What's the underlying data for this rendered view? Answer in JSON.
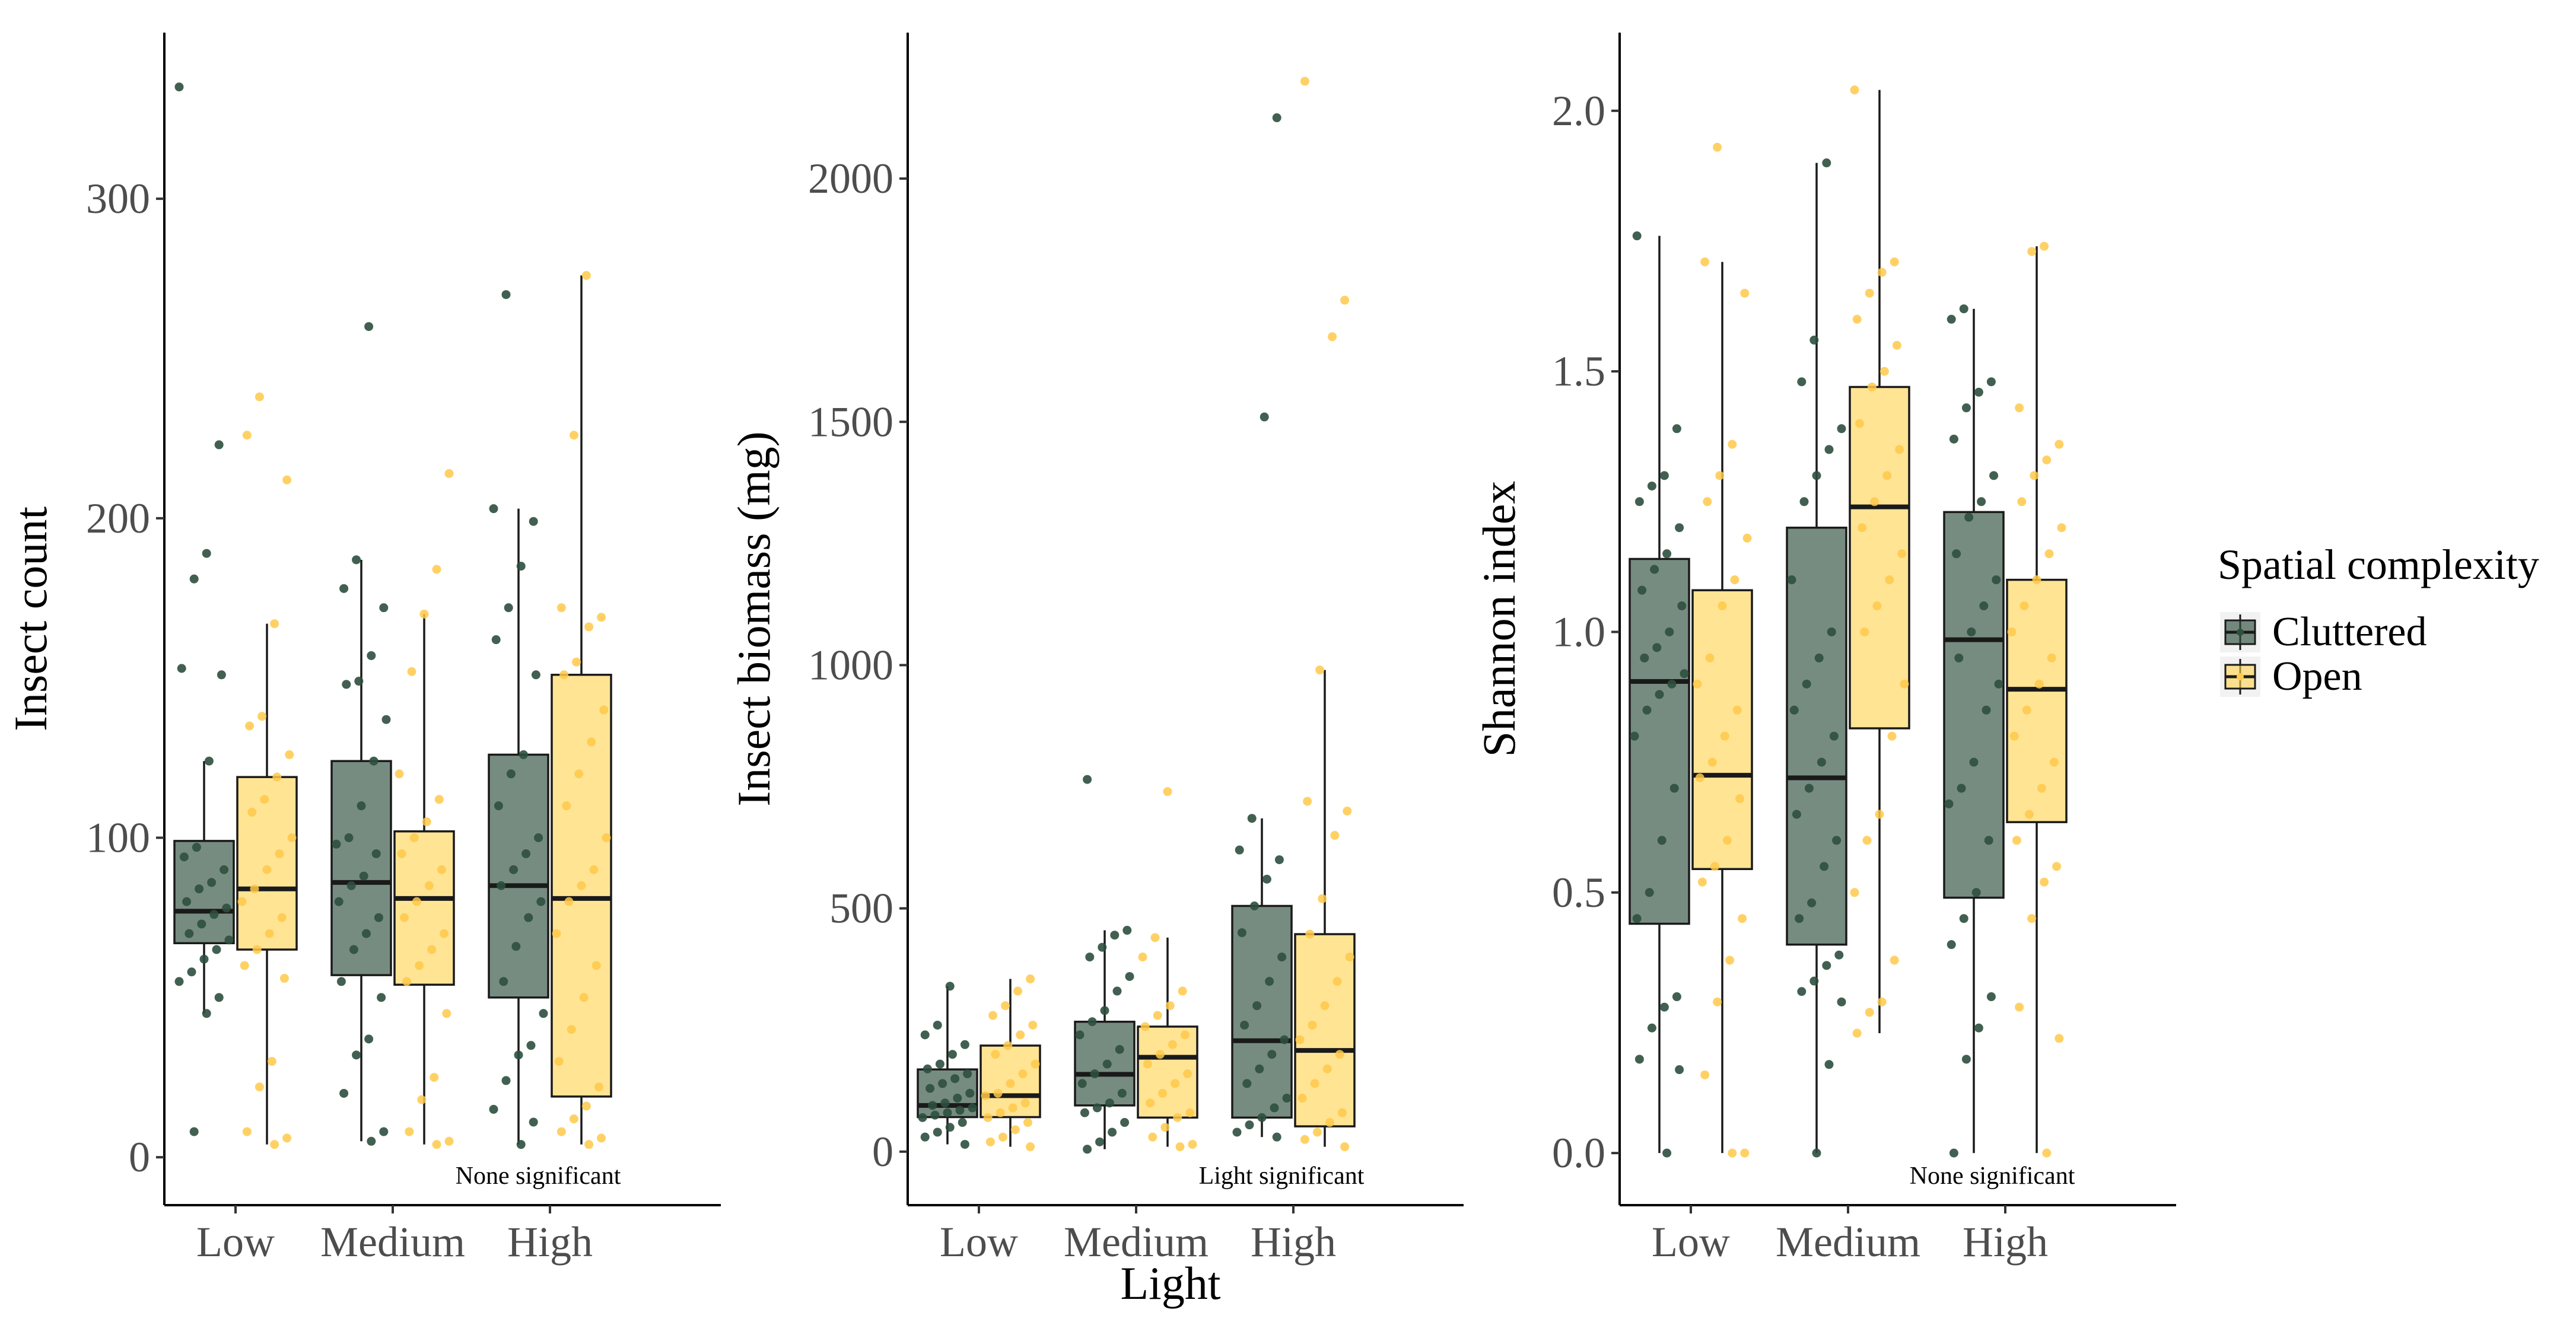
{
  "figure": {
    "shared_xlabel": "Light",
    "legend": {
      "title": "Spatial complexity",
      "entries": [
        {
          "label": "Cluttered",
          "fill": "#2e4f3e",
          "point": "#2e4f3e"
        },
        {
          "label": "Open",
          "fill": "#ffd24d",
          "point": "#ffc94a"
        }
      ]
    }
  },
  "chart_data": [
    {
      "type": "boxplot",
      "ylabel": "Insect count",
      "xlabel": "",
      "ylim": [
        -15,
        352
      ],
      "yticks": [
        0,
        100,
        200,
        300
      ],
      "ytick_labels": [
        "0",
        "100",
        "200",
        "300"
      ],
      "categories": [
        "Low",
        "Medium",
        "High"
      ],
      "annotation": "None significant",
      "series": [
        {
          "name": "Cluttered",
          "boxes": [
            {
              "q1": 67,
              "median": 77,
              "q3": 99,
              "whisker_low": 45,
              "whisker_high": 124,
              "points": [
                335,
                223,
                189,
                181,
                153,
                151,
                124,
                97,
                94,
                90,
                86,
                84,
                80,
                78,
                76,
                73,
                70,
                68,
                65,
                62,
                58,
                55,
                50,
                45,
                8
              ]
            },
            {
              "q1": 57,
              "median": 86,
              "q3": 124,
              "whisker_low": 5,
              "whisker_high": 187,
              "points": [
                260,
                187,
                178,
                172,
                157,
                149,
                148,
                137,
                124,
                110,
                100,
                98,
                95,
                88,
                85,
                80,
                75,
                70,
                65,
                55,
                50,
                37,
                32,
                20,
                8,
                5
              ]
            },
            {
              "q1": 50,
              "median": 85,
              "q3": 126,
              "whisker_low": 4,
              "whisker_high": 203,
              "points": [
                270,
                203,
                199,
                185,
                172,
                162,
                151,
                126,
                120,
                110,
                100,
                95,
                90,
                85,
                80,
                75,
                66,
                55,
                45,
                35,
                32,
                24,
                15,
                11,
                4
              ]
            }
          ]
        },
        {
          "name": "Open",
          "boxes": [
            {
              "q1": 65,
              "median": 84,
              "q3": 119,
              "whisker_low": 4,
              "whisker_high": 167,
              "points": [
                238,
                226,
                212,
                167,
                138,
                135,
                126,
                119,
                112,
                108,
                100,
                95,
                90,
                84,
                80,
                75,
                70,
                65,
                60,
                56,
                30,
                22,
                8,
                6,
                4
              ]
            },
            {
              "q1": 54,
              "median": 81,
              "q3": 102,
              "whisker_low": 4,
              "whisker_high": 170,
              "points": [
                214,
                184,
                170,
                152,
                120,
                112,
                105,
                100,
                95,
                90,
                85,
                80,
                75,
                70,
                65,
                60,
                55,
                45,
                25,
                18,
                8,
                5,
                4
              ]
            },
            {
              "q1": 19,
              "median": 81,
              "q3": 151,
              "whisker_low": 4,
              "whisker_high": 276,
              "points": [
                276,
                226,
                172,
                169,
                166,
                155,
                151,
                140,
                130,
                120,
                110,
                100,
                90,
                85,
                80,
                70,
                60,
                50,
                40,
                30,
                22,
                16,
                12,
                8,
                6,
                4
              ]
            }
          ]
        }
      ]
    },
    {
      "type": "boxplot",
      "ylabel": "Insect biomass (mg)",
      "xlabel": "Light",
      "ylim": [
        -110,
        2300
      ],
      "yticks": [
        0,
        500,
        1000,
        1500,
        2000
      ],
      "ytick_labels": [
        "0",
        "500",
        "1000",
        "1500",
        "2000"
      ],
      "categories": [
        "Low",
        "Medium",
        "High"
      ],
      "annotation": "Light significant",
      "series": [
        {
          "name": "Cluttered",
          "boxes": [
            {
              "q1": 71,
              "median": 95,
              "q3": 169,
              "whisker_low": 15,
              "whisker_high": 340,
              "points": [
                340,
                260,
                240,
                220,
                200,
                180,
                170,
                160,
                150,
                140,
                130,
                120,
                110,
                100,
                95,
                90,
                85,
                80,
                75,
                70,
                60,
                50,
                40,
                30,
                15
              ]
            },
            {
              "q1": 95,
              "median": 159,
              "q3": 267,
              "whisker_low": 5,
              "whisker_high": 455,
              "points": [
                765,
                455,
                445,
                420,
                400,
                360,
                330,
                290,
                267,
                240,
                210,
                180,
                160,
                140,
                120,
                100,
                90,
                80,
                60,
                40,
                20,
                5
              ]
            },
            {
              "q1": 70,
              "median": 228,
              "q3": 505,
              "whisker_low": 30,
              "whisker_high": 685,
              "points": [
                2125,
                1510,
                685,
                620,
                600,
                560,
                505,
                450,
                400,
                350,
                300,
                260,
                230,
                200,
                170,
                140,
                110,
                90,
                70,
                55,
                40,
                30
              ]
            }
          ]
        },
        {
          "name": "Open",
          "boxes": [
            {
              "q1": 71,
              "median": 115,
              "q3": 218,
              "whisker_low": 10,
              "whisker_high": 355,
              "points": [
                355,
                330,
                300,
                280,
                260,
                240,
                218,
                200,
                180,
                160,
                140,
                120,
                115,
                100,
                90,
                80,
                70,
                60,
                45,
                30,
                20,
                10
              ]
            },
            {
              "q1": 70,
              "median": 194,
              "q3": 257,
              "whisker_low": 10,
              "whisker_high": 440,
              "points": [
                740,
                440,
                400,
                330,
                300,
                280,
                257,
                240,
                220,
                200,
                180,
                160,
                140,
                120,
                100,
                80,
                70,
                50,
                30,
                15,
                10
              ]
            },
            {
              "q1": 52,
              "median": 208,
              "q3": 447,
              "whisker_low": 10,
              "whisker_high": 990,
              "points": [
                2200,
                1750,
                1675,
                990,
                720,
                700,
                650,
                520,
                447,
                400,
                350,
                300,
                260,
                230,
                200,
                170,
                140,
                110,
                80,
                60,
                40,
                25,
                10
              ]
            }
          ]
        }
      ]
    },
    {
      "type": "boxplot",
      "ylabel": "Shannon index",
      "xlabel": "",
      "ylim": [
        -0.1,
        2.15
      ],
      "yticks": [
        0.0,
        0.5,
        1.0,
        1.5,
        2.0
      ],
      "ytick_labels": [
        "0.0",
        "0.5",
        "1.0",
        "1.5",
        "2.0"
      ],
      "categories": [
        "Low",
        "Medium",
        "High"
      ],
      "annotation": "None significant",
      "series": [
        {
          "name": "Cluttered",
          "boxes": [
            {
              "q1": 0.44,
              "median": 0.905,
              "q3": 1.14,
              "whisker_low": 0.0,
              "whisker_high": 1.76,
              "points": [
                1.76,
                1.39,
                1.3,
                1.28,
                1.25,
                1.2,
                1.15,
                1.12,
                1.08,
                1.05,
                1.0,
                0.97,
                0.95,
                0.92,
                0.9,
                0.88,
                0.85,
                0.8,
                0.7,
                0.6,
                0.5,
                0.45,
                0.3,
                0.28,
                0.24,
                0.18,
                0.16,
                0.0
              ]
            },
            {
              "q1": 0.4,
              "median": 0.72,
              "q3": 1.2,
              "whisker_low": 0.0,
              "whisker_high": 1.9,
              "points": [
                1.9,
                1.56,
                1.48,
                1.39,
                1.35,
                1.3,
                1.25,
                1.1,
                1.0,
                0.95,
                0.9,
                0.85,
                0.8,
                0.75,
                0.7,
                0.65,
                0.6,
                0.55,
                0.48,
                0.45,
                0.38,
                0.36,
                0.33,
                0.31,
                0.29,
                0.17,
                0.0
              ]
            },
            {
              "q1": 0.49,
              "median": 0.985,
              "q3": 1.23,
              "whisker_low": 0.0,
              "whisker_high": 1.62,
              "points": [
                1.62,
                1.6,
                1.48,
                1.46,
                1.43,
                1.37,
                1.3,
                1.25,
                1.22,
                1.15,
                1.1,
                1.05,
                1.0,
                0.95,
                0.9,
                0.85,
                0.75,
                0.7,
                0.67,
                0.6,
                0.5,
                0.45,
                0.4,
                0.3,
                0.24,
                0.18,
                0.0
              ]
            }
          ]
        },
        {
          "name": "Open",
          "boxes": [
            {
              "q1": 0.545,
              "median": 0.725,
              "q3": 1.08,
              "whisker_low": 0.0,
              "whisker_high": 1.71,
              "points": [
                1.93,
                1.71,
                1.65,
                1.36,
                1.3,
                1.25,
                1.18,
                1.1,
                1.05,
                0.95,
                0.9,
                0.85,
                0.8,
                0.75,
                0.72,
                0.68,
                0.6,
                0.55,
                0.52,
                0.45,
                0.37,
                0.29,
                0.15,
                0.0,
                0.0
              ]
            },
            {
              "q1": 0.815,
              "median": 1.24,
              "q3": 1.47,
              "whisker_low": 0.23,
              "whisker_high": 2.04,
              "points": [
                2.04,
                1.71,
                1.69,
                1.65,
                1.6,
                1.55,
                1.5,
                1.47,
                1.4,
                1.35,
                1.3,
                1.25,
                1.2,
                1.15,
                1.1,
                1.05,
                1.0,
                0.9,
                0.8,
                0.65,
                0.6,
                0.5,
                0.37,
                0.29,
                0.27,
                0.23
              ]
            },
            {
              "q1": 0.635,
              "median": 0.89,
              "q3": 1.1,
              "whisker_low": 0.0,
              "whisker_high": 1.74,
              "points": [
                1.74,
                1.73,
                1.43,
                1.36,
                1.33,
                1.3,
                1.25,
                1.2,
                1.15,
                1.1,
                1.05,
                1.0,
                0.95,
                0.9,
                0.85,
                0.8,
                0.75,
                0.7,
                0.65,
                0.6,
                0.55,
                0.52,
                0.45,
                0.28,
                0.22,
                0.0
              ]
            }
          ]
        }
      ]
    }
  ]
}
